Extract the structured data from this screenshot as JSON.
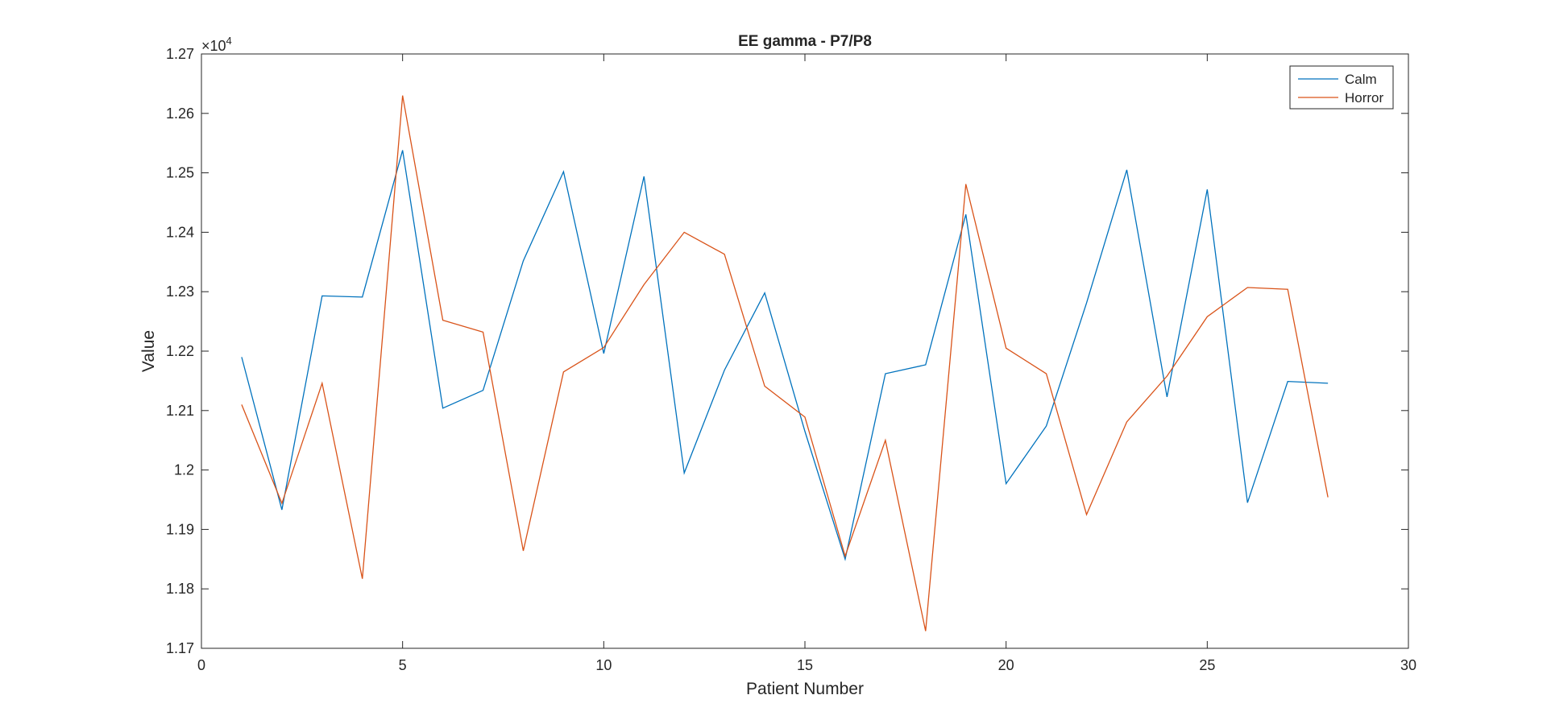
{
  "chart_data": {
    "type": "line",
    "title": "EE gamma - P7/P8",
    "xlabel": "Patient Number",
    "ylabel": "Value",
    "exponent_label": "×10",
    "exponent_power": "4",
    "xlim": [
      0,
      30
    ],
    "ylim": [
      11700,
      12700
    ],
    "xticks": [
      0,
      5,
      10,
      15,
      20,
      25,
      30
    ],
    "xtick_labels": [
      "0",
      "5",
      "10",
      "15",
      "20",
      "25",
      "30"
    ],
    "yticks": [
      11700,
      11800,
      11900,
      12000,
      12100,
      12200,
      12300,
      12400,
      12500,
      12600,
      12700
    ],
    "ytick_labels": [
      "1.17",
      "1.18",
      "1.19",
      "1.2",
      "1.21",
      "1.22",
      "1.23",
      "1.24",
      "1.25",
      "1.26",
      "1.27"
    ],
    "grid": false,
    "legend_position": "top-right",
    "x": [
      1,
      2,
      3,
      4,
      5,
      6,
      7,
      8,
      9,
      10,
      11,
      12,
      13,
      14,
      15,
      16,
      17,
      18,
      19,
      20,
      21,
      22,
      23,
      24,
      25,
      26,
      27,
      28
    ],
    "series": [
      {
        "name": "Calm",
        "color": "#0072BD",
        "values": [
          12190,
          11933,
          12293,
          12291,
          12538,
          12104,
          12134,
          12352,
          12502,
          12196,
          12494,
          11995,
          12168,
          12298,
          12065,
          11850,
          12162,
          12177,
          12430,
          11977,
          12074,
          12281,
          12505,
          12123,
          12472,
          11945,
          12149,
          12146
        ]
      },
      {
        "name": "Horror",
        "color": "#D95319",
        "values": [
          12110,
          11944,
          12146,
          11817,
          12630,
          12252,
          12232,
          11864,
          12165,
          12206,
          12312,
          12400,
          12363,
          12141,
          12089,
          11855,
          12050,
          11729,
          12481,
          12205,
          12162,
          11925,
          12081,
          12158,
          12258,
          12307,
          12304,
          11954
        ]
      }
    ]
  }
}
